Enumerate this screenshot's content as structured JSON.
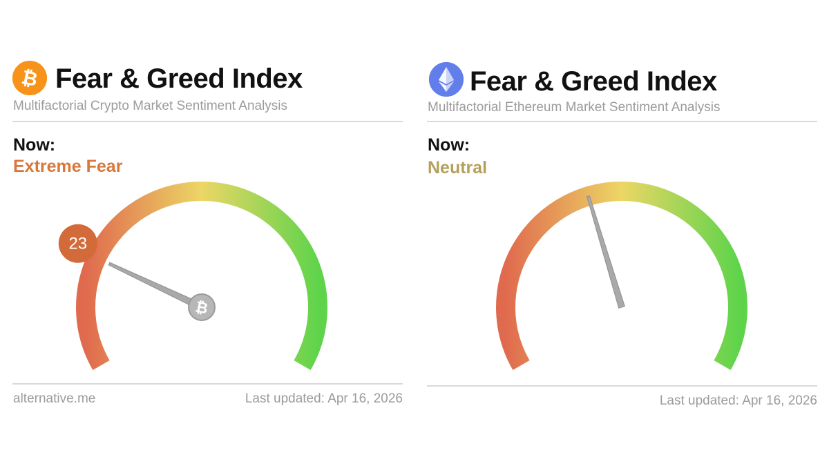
{
  "cards": [
    {
      "icon": "bitcoin-icon",
      "title": "Fear & Greed Index",
      "subtitle": "Multifactorial Crypto Market Sentiment Analysis",
      "now_label": "Now:",
      "status": "Extreme Fear",
      "status_color": "#d9773a",
      "value": 23,
      "value_color": "#d36a3a",
      "footer_left": "alternative.me",
      "footer_right": "Last updated: Apr 16, 2026"
    },
    {
      "icon": "ethereum-icon",
      "title": "Fear & Greed Index",
      "subtitle": "Multifactorial Ethereum Market Sentiment Analysis",
      "now_label": "Now:",
      "status": "Neutral",
      "status_color": "#b3a05a",
      "value": 43,
      "value_color": "#b5a05c",
      "footer_left": "",
      "footer_right": "Last updated: Apr 16, 2026"
    }
  ],
  "colors": {
    "bitcoin": "#f7931a",
    "ethereum": "#627eea",
    "gauge_fear": "#e06a4e",
    "gauge_mid": "#e8d664",
    "gauge_greed": "#62d44e",
    "needle": "#a9a9a9"
  }
}
